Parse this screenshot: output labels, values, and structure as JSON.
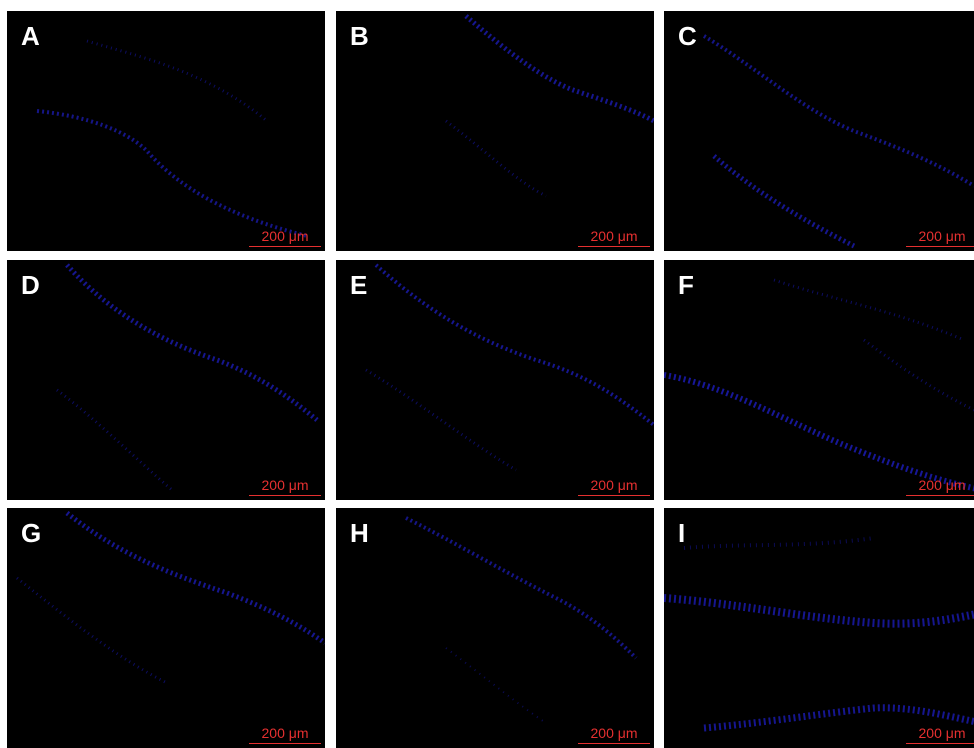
{
  "panels": [
    {
      "label": "A",
      "scale_text": "200 μm"
    },
    {
      "label": "B",
      "scale_text": "200 μm"
    },
    {
      "label": "C",
      "scale_text": "200 μm"
    },
    {
      "label": "D",
      "scale_text": "200 μm"
    },
    {
      "label": "E",
      "scale_text": "200 μm"
    },
    {
      "label": "F",
      "scale_text": "200 μm"
    },
    {
      "label": "G",
      "scale_text": "200 μm"
    },
    {
      "label": "H",
      "scale_text": "200 μm"
    },
    {
      "label": "I",
      "scale_text": "200 μm"
    }
  ],
  "colors": {
    "background": "#000000",
    "nuclei": "#2a2aff",
    "label": "#ffffff",
    "scale": "#e53030"
  }
}
